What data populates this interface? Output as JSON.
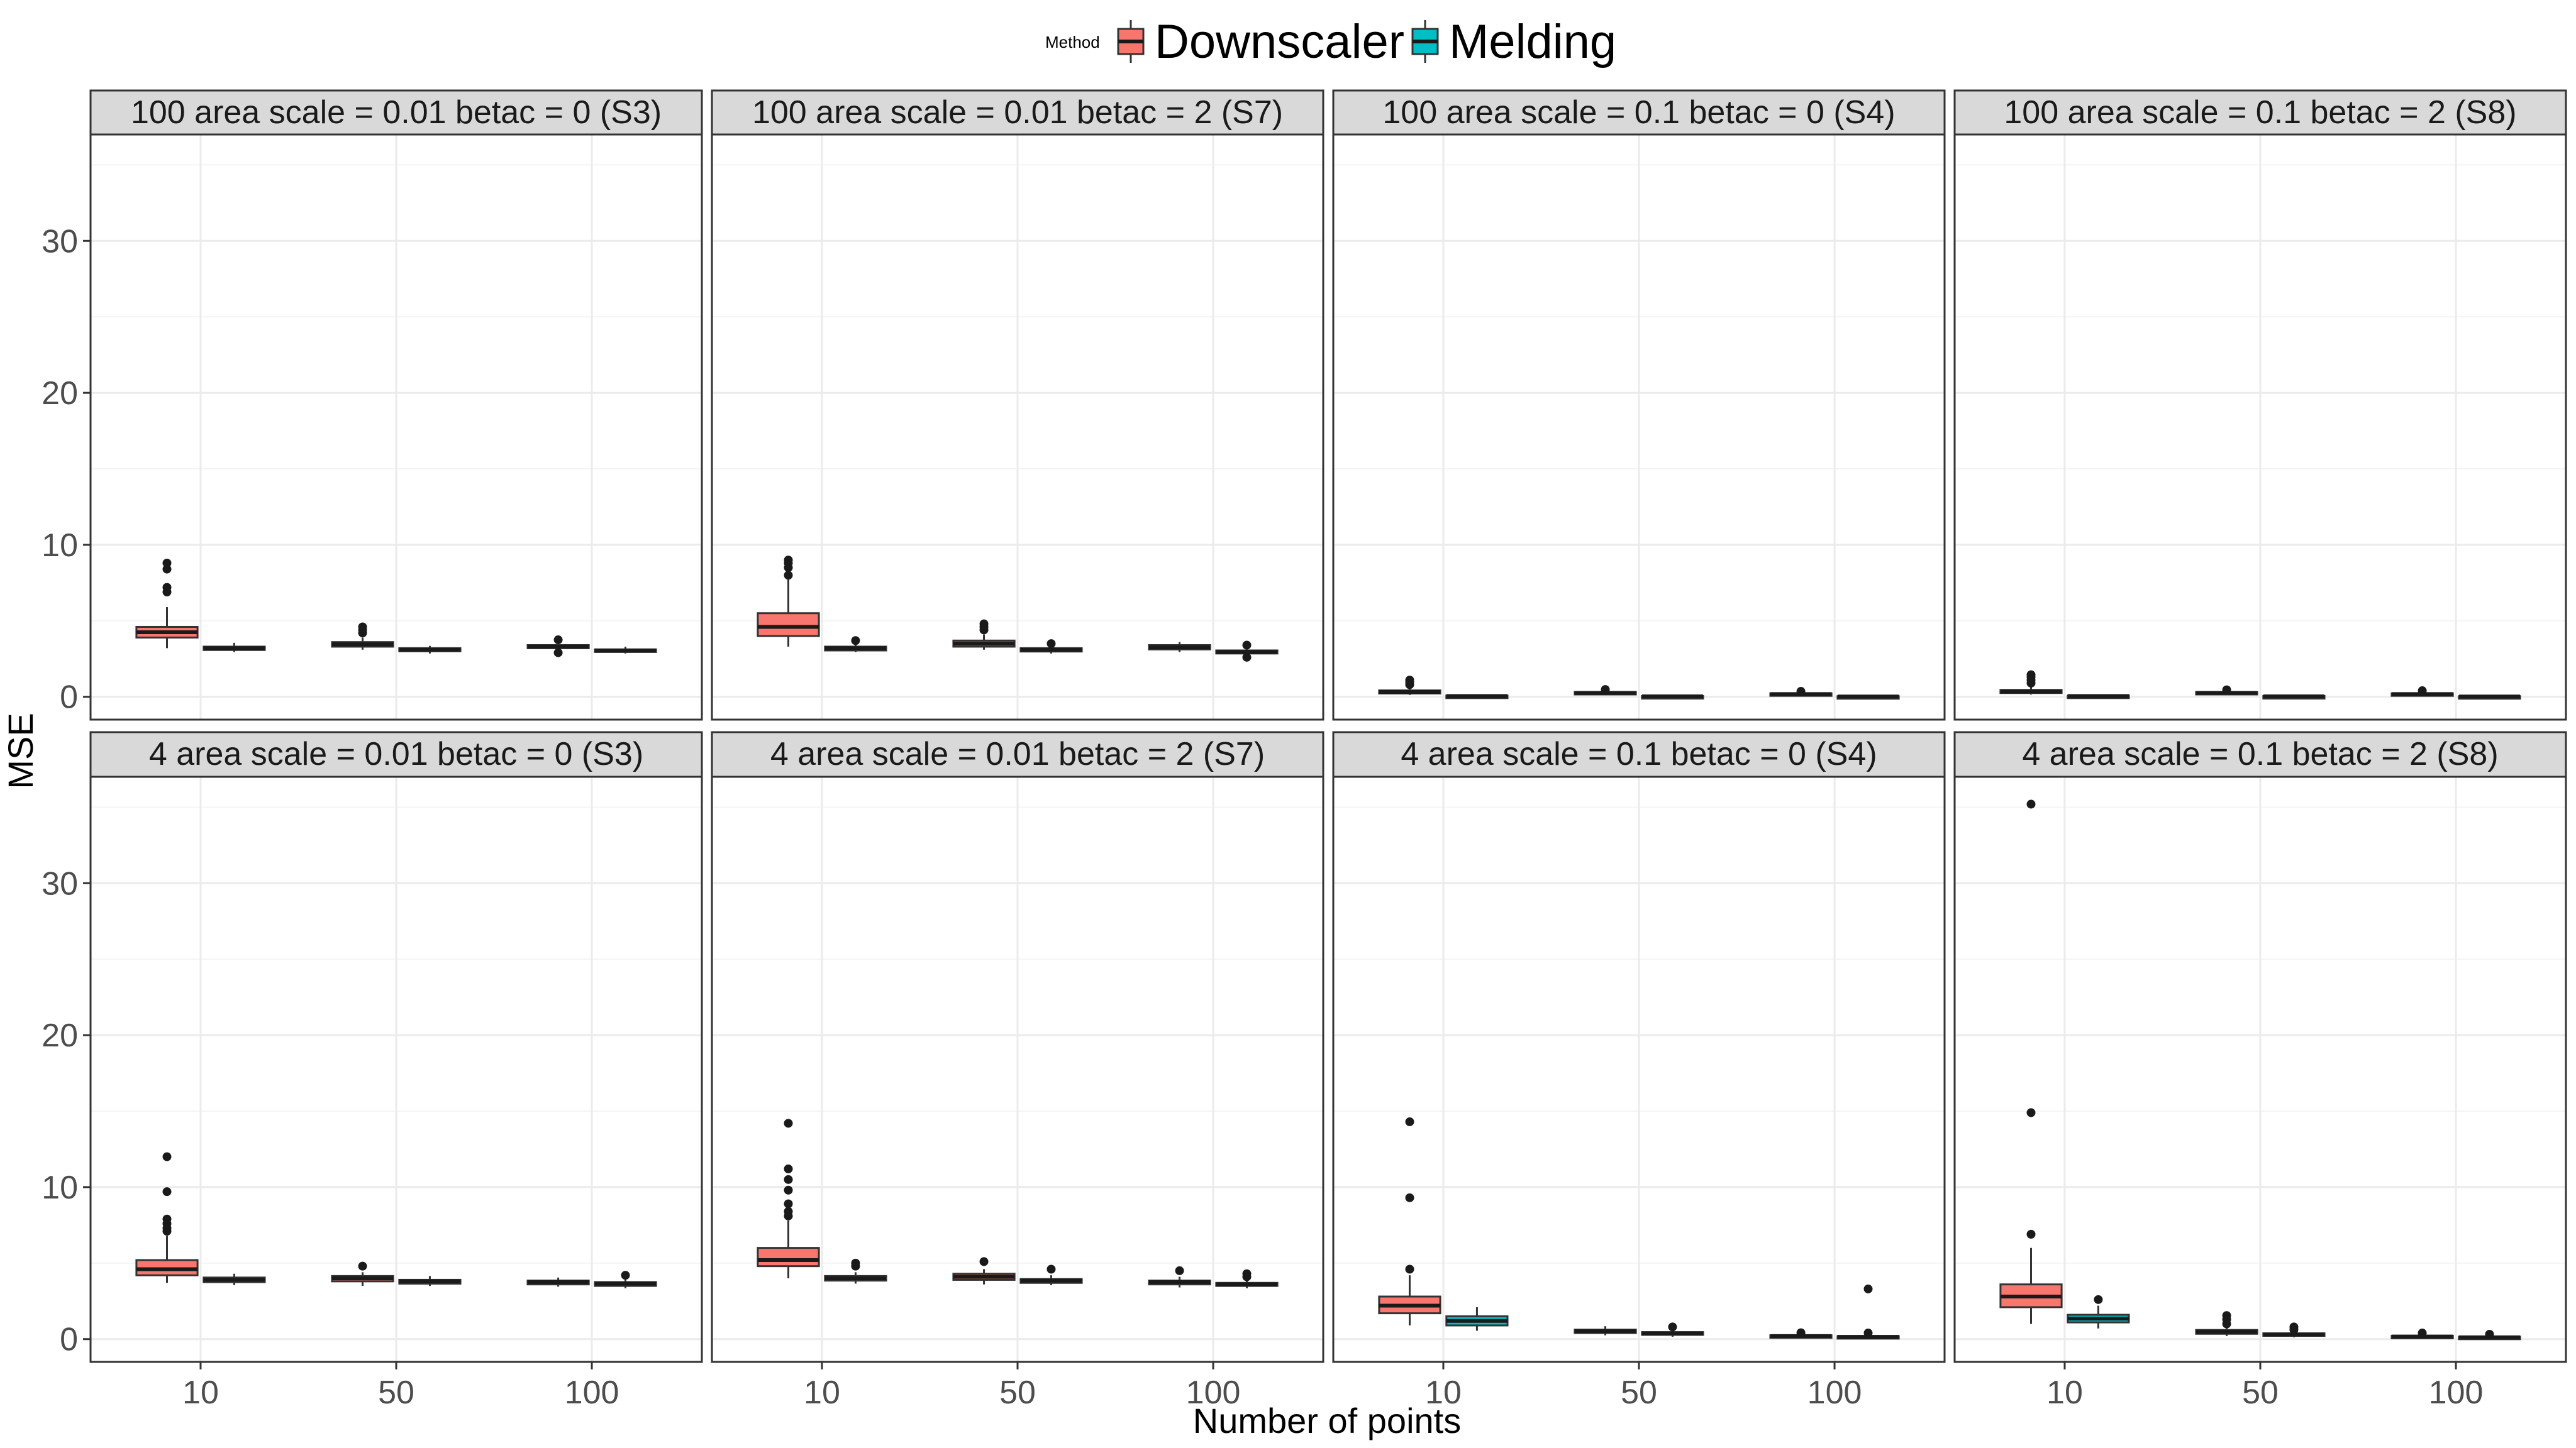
{
  "chart_data": {
    "type": "boxplot",
    "title": "",
    "xlabel": "Number of points",
    "ylabel": "MSE",
    "ylim": [
      -1.5,
      37
    ],
    "y_ticks": [
      0,
      10,
      20,
      30
    ],
    "x_categories": [
      "10",
      "50",
      "100"
    ],
    "grid": true,
    "legend": {
      "title": "Method",
      "position": "top",
      "entries": [
        {
          "name": "Downscaler",
          "color": "#F8766D"
        },
        {
          "name": "Melding",
          "color": "#00BFC4"
        }
      ]
    },
    "panels": [
      {
        "label": "100 area scale = 0.01 betac = 0 (S3)",
        "groups": [
          {
            "x": "10",
            "method": "Downscaler",
            "q1": 3.9,
            "median": 4.25,
            "q3": 4.6,
            "lower": 3.2,
            "upper": 5.9,
            "outliers": [
              6.9,
              7.2,
              8.4,
              8.8
            ]
          },
          {
            "x": "10",
            "method": "Melding",
            "q1": 3.08,
            "median": 3.2,
            "q3": 3.3,
            "lower": 2.95,
            "upper": 3.55,
            "outliers": []
          },
          {
            "x": "50",
            "method": "Downscaler",
            "q1": 3.3,
            "median": 3.45,
            "q3": 3.6,
            "lower": 3.1,
            "upper": 3.9,
            "outliers": [
              4.2,
              4.4,
              4.6
            ]
          },
          {
            "x": "50",
            "method": "Melding",
            "q1": 3.0,
            "median": 3.1,
            "q3": 3.2,
            "lower": 2.85,
            "upper": 3.35,
            "outliers": []
          },
          {
            "x": "100",
            "method": "Downscaler",
            "q1": 3.2,
            "median": 3.3,
            "q3": 3.4,
            "lower": 3.05,
            "upper": 3.55,
            "outliers": [
              2.9,
              3.75
            ]
          },
          {
            "x": "100",
            "method": "Melding",
            "q1": 2.95,
            "median": 3.05,
            "q3": 3.12,
            "lower": 2.85,
            "upper": 3.3,
            "outliers": []
          }
        ]
      },
      {
        "label": "100 area scale = 0.01 betac = 2 (S7)",
        "groups": [
          {
            "x": "10",
            "method": "Downscaler",
            "q1": 4.0,
            "median": 4.6,
            "q3": 5.5,
            "lower": 3.3,
            "upper": 7.8,
            "outliers": [
              8.0,
              8.5,
              8.8,
              9.0
            ]
          },
          {
            "x": "10",
            "method": "Melding",
            "q1": 3.05,
            "median": 3.2,
            "q3": 3.3,
            "lower": 2.95,
            "upper": 3.45,
            "outliers": [
              3.7
            ]
          },
          {
            "x": "50",
            "method": "Downscaler",
            "q1": 3.3,
            "median": 3.5,
            "q3": 3.7,
            "lower": 3.1,
            "upper": 4.1,
            "outliers": [
              4.4,
              4.6,
              4.8
            ]
          },
          {
            "x": "50",
            "method": "Melding",
            "q1": 2.98,
            "median": 3.1,
            "q3": 3.2,
            "lower": 2.85,
            "upper": 3.3,
            "outliers": [
              3.5
            ]
          },
          {
            "x": "100",
            "method": "Downscaler",
            "q1": 3.12,
            "median": 3.25,
            "q3": 3.4,
            "lower": 2.95,
            "upper": 3.6,
            "outliers": []
          },
          {
            "x": "100",
            "method": "Melding",
            "q1": 2.85,
            "median": 2.95,
            "q3": 3.05,
            "lower": 2.7,
            "upper": 3.2,
            "outliers": [
              2.6,
              3.4
            ]
          }
        ]
      },
      {
        "label": "100 area scale = 0.1 betac = 0 (S4)",
        "groups": [
          {
            "x": "10",
            "method": "Downscaler",
            "q1": 0.22,
            "median": 0.32,
            "q3": 0.42,
            "lower": 0.12,
            "upper": 0.62,
            "outliers": [
              0.8,
              0.95,
              1.1
            ]
          },
          {
            "x": "10",
            "method": "Melding",
            "q1": 0.02,
            "median": 0.05,
            "q3": 0.08,
            "lower": 0.0,
            "upper": 0.12,
            "outliers": []
          },
          {
            "x": "50",
            "method": "Downscaler",
            "q1": 0.18,
            "median": 0.25,
            "q3": 0.32,
            "lower": 0.12,
            "upper": 0.4,
            "outliers": [
              0.48
            ]
          },
          {
            "x": "50",
            "method": "Melding",
            "q1": 0.01,
            "median": 0.03,
            "q3": 0.05,
            "lower": 0.0,
            "upper": 0.08,
            "outliers": []
          },
          {
            "x": "100",
            "method": "Downscaler",
            "q1": 0.13,
            "median": 0.18,
            "q3": 0.23,
            "lower": 0.08,
            "upper": 0.3,
            "outliers": [
              0.36
            ]
          },
          {
            "x": "100",
            "method": "Melding",
            "q1": 0.0,
            "median": 0.02,
            "q3": 0.04,
            "lower": 0.0,
            "upper": 0.06,
            "outliers": []
          }
        ]
      },
      {
        "label": "100 area scale = 0.1 betac = 2 (S8)",
        "groups": [
          {
            "x": "10",
            "method": "Downscaler",
            "q1": 0.25,
            "median": 0.35,
            "q3": 0.45,
            "lower": 0.15,
            "upper": 0.7,
            "outliers": [
              0.9,
              1.1,
              1.3,
              1.45
            ]
          },
          {
            "x": "10",
            "method": "Melding",
            "q1": 0.02,
            "median": 0.05,
            "q3": 0.08,
            "lower": 0.0,
            "upper": 0.12,
            "outliers": []
          },
          {
            "x": "50",
            "method": "Downscaler",
            "q1": 0.2,
            "median": 0.26,
            "q3": 0.32,
            "lower": 0.14,
            "upper": 0.4,
            "outliers": [
              0.46
            ]
          },
          {
            "x": "50",
            "method": "Melding",
            "q1": 0.01,
            "median": 0.03,
            "q3": 0.05,
            "lower": 0.0,
            "upper": 0.08,
            "outliers": []
          },
          {
            "x": "100",
            "method": "Downscaler",
            "q1": 0.13,
            "median": 0.18,
            "q3": 0.23,
            "lower": 0.08,
            "upper": 0.3,
            "outliers": [
              0.4
            ]
          },
          {
            "x": "100",
            "method": "Melding",
            "q1": 0.0,
            "median": 0.02,
            "q3": 0.04,
            "lower": 0.0,
            "upper": 0.06,
            "outliers": []
          }
        ]
      },
      {
        "label": "4 area scale = 0.01 betac = 0 (S3)",
        "groups": [
          {
            "x": "10",
            "method": "Downscaler",
            "q1": 4.2,
            "median": 4.6,
            "q3": 5.2,
            "lower": 3.7,
            "upper": 6.8,
            "outliers": [
              7.1,
              7.3,
              7.6,
              7.9,
              9.7,
              12.0
            ]
          },
          {
            "x": "10",
            "method": "Melding",
            "q1": 3.75,
            "median": 3.9,
            "q3": 4.05,
            "lower": 3.55,
            "upper": 4.3,
            "outliers": []
          },
          {
            "x": "50",
            "method": "Downscaler",
            "q1": 3.8,
            "median": 4.0,
            "q3": 4.15,
            "lower": 3.5,
            "upper": 4.4,
            "outliers": [
              4.8
            ]
          },
          {
            "x": "50",
            "method": "Melding",
            "q1": 3.65,
            "median": 3.8,
            "q3": 3.9,
            "lower": 3.5,
            "upper": 4.15,
            "outliers": []
          },
          {
            "x": "100",
            "method": "Downscaler",
            "q1": 3.6,
            "median": 3.75,
            "q3": 3.85,
            "lower": 3.45,
            "upper": 4.05,
            "outliers": []
          },
          {
            "x": "100",
            "method": "Melding",
            "q1": 3.5,
            "median": 3.65,
            "q3": 3.75,
            "lower": 3.35,
            "upper": 3.95,
            "outliers": [
              4.2
            ]
          }
        ]
      },
      {
        "label": "4 area scale = 0.01 betac = 2 (S7)",
        "groups": [
          {
            "x": "10",
            "method": "Downscaler",
            "q1": 4.8,
            "median": 5.2,
            "q3": 6.0,
            "lower": 4.0,
            "upper": 7.8,
            "outliers": [
              8.1,
              8.4,
              8.9,
              9.8,
              10.5,
              11.2,
              14.2
            ]
          },
          {
            "x": "10",
            "method": "Melding",
            "q1": 3.85,
            "median": 4.0,
            "q3": 4.15,
            "lower": 3.65,
            "upper": 4.4,
            "outliers": [
              4.8,
              5.0
            ]
          },
          {
            "x": "50",
            "method": "Downscaler",
            "q1": 3.9,
            "median": 4.1,
            "q3": 4.3,
            "lower": 3.6,
            "upper": 4.6,
            "outliers": [
              5.1
            ]
          },
          {
            "x": "50",
            "method": "Melding",
            "q1": 3.7,
            "median": 3.85,
            "q3": 3.95,
            "lower": 3.55,
            "upper": 4.2,
            "outliers": [
              4.6
            ]
          },
          {
            "x": "100",
            "method": "Downscaler",
            "q1": 3.6,
            "median": 3.75,
            "q3": 3.85,
            "lower": 3.4,
            "upper": 4.1,
            "outliers": [
              4.5
            ]
          },
          {
            "x": "100",
            "method": "Melding",
            "q1": 3.5,
            "median": 3.6,
            "q3": 3.7,
            "lower": 3.35,
            "upper": 3.9,
            "outliers": [
              4.1,
              4.3
            ]
          }
        ]
      },
      {
        "label": "4 area scale = 0.1 betac = 0 (S4)",
        "groups": [
          {
            "x": "10",
            "method": "Downscaler",
            "q1": 1.7,
            "median": 2.2,
            "q3": 2.8,
            "lower": 0.9,
            "upper": 4.2,
            "outliers": [
              4.6,
              9.3,
              14.3
            ]
          },
          {
            "x": "10",
            "method": "Melding",
            "q1": 0.9,
            "median": 1.2,
            "q3": 1.5,
            "lower": 0.55,
            "upper": 2.1,
            "outliers": []
          },
          {
            "x": "50",
            "method": "Downscaler",
            "q1": 0.4,
            "median": 0.52,
            "q3": 0.62,
            "lower": 0.25,
            "upper": 0.85,
            "outliers": []
          },
          {
            "x": "50",
            "method": "Melding",
            "q1": 0.28,
            "median": 0.38,
            "q3": 0.46,
            "lower": 0.15,
            "upper": 0.65,
            "outliers": [
              0.8
            ]
          },
          {
            "x": "100",
            "method": "Downscaler",
            "q1": 0.15,
            "median": 0.2,
            "q3": 0.25,
            "lower": 0.1,
            "upper": 0.32,
            "outliers": [
              0.42
            ]
          },
          {
            "x": "100",
            "method": "Melding",
            "q1": 0.1,
            "median": 0.15,
            "q3": 0.2,
            "lower": 0.05,
            "upper": 0.28,
            "outliers": [
              0.4,
              3.3
            ]
          }
        ]
      },
      {
        "label": "4 area scale = 0.1 betac = 2 (S8)",
        "groups": [
          {
            "x": "10",
            "method": "Downscaler",
            "q1": 2.1,
            "median": 2.8,
            "q3": 3.6,
            "lower": 1.0,
            "upper": 6.0,
            "outliers": [
              6.9,
              14.9,
              35.2
            ]
          },
          {
            "x": "10",
            "method": "Melding",
            "q1": 1.1,
            "median": 1.35,
            "q3": 1.6,
            "lower": 0.7,
            "upper": 2.2,
            "outliers": [
              2.6
            ]
          },
          {
            "x": "50",
            "method": "Downscaler",
            "q1": 0.35,
            "median": 0.48,
            "q3": 0.6,
            "lower": 0.2,
            "upper": 0.8,
            "outliers": [
              1.0,
              1.3,
              1.55
            ]
          },
          {
            "x": "50",
            "method": "Melding",
            "q1": 0.22,
            "median": 0.3,
            "q3": 0.38,
            "lower": 0.12,
            "upper": 0.5,
            "outliers": [
              0.62,
              0.8
            ]
          },
          {
            "x": "100",
            "method": "Downscaler",
            "q1": 0.12,
            "median": 0.17,
            "q3": 0.22,
            "lower": 0.06,
            "upper": 0.3,
            "outliers": [
              0.4
            ]
          },
          {
            "x": "100",
            "method": "Melding",
            "q1": 0.08,
            "median": 0.12,
            "q3": 0.16,
            "lower": 0.04,
            "upper": 0.22,
            "outliers": [
              0.32
            ]
          }
        ]
      }
    ]
  }
}
